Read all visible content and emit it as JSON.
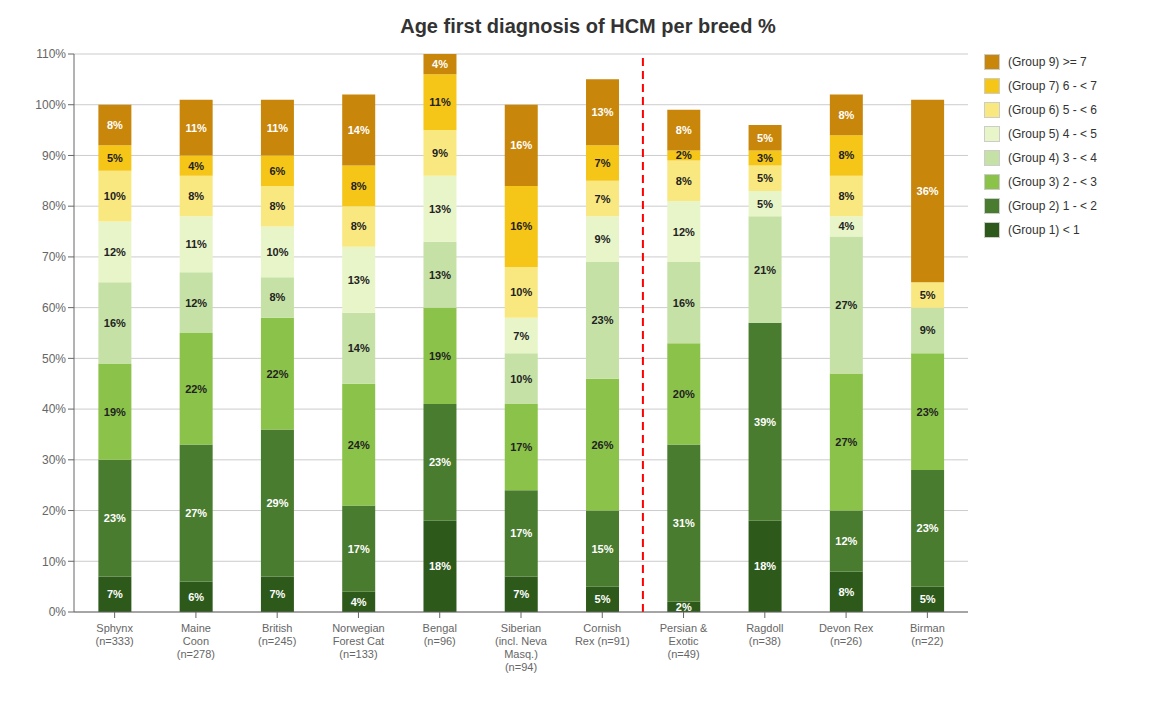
{
  "chart_data": {
    "type": "bar",
    "title": "Age first diagnosis of HCM per breed %",
    "stacked": true,
    "grid": true,
    "legend": "right",
    "data_labels": true,
    "categories": [
      "Sphynx\n(n=333)",
      "Maine\nCoon\n(n=278)",
      "British\n(n=245)",
      "Norwegian\nForest Cat\n(n=133)",
      "Bengal\n(n=96)",
      "Siberian\n(incl. Neva\nMasq.)\n(n=94)",
      "Cornish\nRex (n=91)",
      "Persian &\nExotic\n(n=49)",
      "Ragdoll\n(n=38)",
      "Devon Rex\n(n=26)",
      "Birman\n(n=22)"
    ],
    "series": [
      {
        "name": "(Group 1) < 1",
        "color": "#2d5a1b",
        "values": [
          7,
          6,
          7,
          4,
          18,
          7,
          5,
          2,
          18,
          8,
          5
        ],
        "value_labels": [
          "7%",
          "6%",
          "7%",
          "4%",
          "18%",
          "7%",
          "5%",
          "2%",
          "18%",
          "8%",
          "5%"
        ]
      },
      {
        "name": "(Group 2) 1 - < 2",
        "color": "#4a7c2f",
        "values": [
          23,
          27,
          29,
          17,
          23,
          17,
          15,
          31,
          39,
          12,
          23
        ],
        "value_labels": [
          "23%",
          "27%",
          "29%",
          "17%",
          "23%",
          "17%",
          "15%",
          "31%",
          "39%",
          "12%",
          "23%"
        ]
      },
      {
        "name": "(Group 3) 2 - < 3",
        "color": "#8bc34a",
        "values": [
          19,
          22,
          22,
          24,
          19,
          17,
          26,
          20,
          0,
          27,
          23
        ],
        "value_labels": [
          "19%",
          "22%",
          "22%",
          "24%",
          "19%",
          "17%",
          "26%",
          "20%",
          null,
          "27%",
          "23%"
        ]
      },
      {
        "name": "(Group 4) 3 - < 4",
        "color": "#c5e1a5",
        "values": [
          16,
          12,
          8,
          14,
          13,
          10,
          23,
          16,
          21,
          27,
          9
        ],
        "value_labels": [
          "16%",
          "12%",
          "8%",
          "14%",
          "13%",
          "10%",
          "23%",
          "16%",
          "21%",
          "27%",
          "9%"
        ]
      },
      {
        "name": "(Group 5) 4 - < 5",
        "color": "#e8f5c8",
        "values": [
          12,
          11,
          10,
          13,
          13,
          7,
          9,
          12,
          5,
          4,
          0
        ],
        "value_labels": [
          "12%",
          "11%",
          "10%",
          "13%",
          "13%",
          "7%",
          "9%",
          "12%",
          "5%",
          "4%",
          null
        ]
      },
      {
        "name": "(Group 6) 5 - < 6",
        "color": "#f9e87f",
        "values": [
          10,
          8,
          8,
          8,
          9,
          10,
          7,
          8,
          5,
          8,
          5
        ],
        "value_labels": [
          "10%",
          "8%",
          "8%",
          "8%",
          "9%",
          "10%",
          "7%",
          "8%",
          "5%",
          "8%",
          "5%"
        ]
      },
      {
        "name": "(Group 7) 6 - < 7",
        "color": "#f5c518",
        "values": [
          5,
          4,
          6,
          8,
          11,
          16,
          7,
          2,
          3,
          8,
          0
        ],
        "value_labels": [
          "5%",
          "4%",
          "6%",
          "8%",
          "11%",
          "16%",
          "7%",
          "2%",
          "3%",
          "8%",
          null
        ]
      },
      {
        "name": "(Group 9) >= 7",
        "color": "#c8860a",
        "values": [
          8,
          11,
          11,
          14,
          4,
          16,
          13,
          8,
          5,
          8,
          36
        ],
        "value_labels": [
          "8%",
          "11%",
          "11%",
          "14%",
          "4%",
          "16%",
          "13%",
          "8%",
          "5%",
          "8%",
          "36%"
        ]
      }
    ],
    "ylim": [
      0,
      110
    ],
    "yticks": [
      {
        "value": 0,
        "label": "0%"
      },
      {
        "value": 10,
        "label": "10%"
      },
      {
        "value": 20,
        "label": "20%"
      },
      {
        "value": 30,
        "label": "30%"
      },
      {
        "value": 40,
        "label": "40%"
      },
      {
        "value": 50,
        "label": "50%"
      },
      {
        "value": 60,
        "label": "60%"
      },
      {
        "value": 70,
        "label": "70%"
      },
      {
        "value": 80,
        "label": "80%"
      },
      {
        "value": 90,
        "label": "90%"
      },
      {
        "value": 100,
        "label": "100%"
      },
      {
        "value": 110,
        "label": "110%"
      }
    ],
    "annotations": [
      {
        "type": "vline",
        "x": "Cornish\nRex (n=91)",
        "color": "red",
        "line_style": "dashed"
      }
    ]
  }
}
